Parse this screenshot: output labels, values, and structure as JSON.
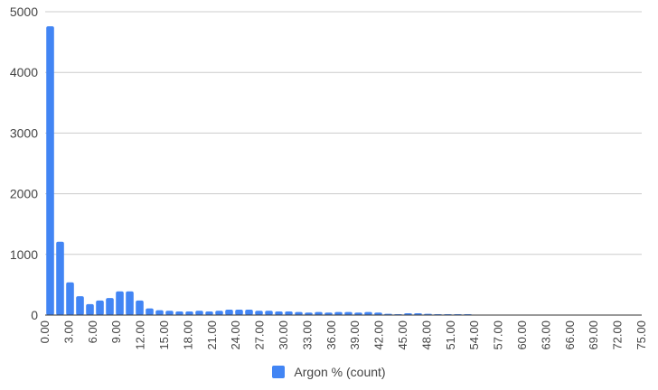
{
  "chart_data": {
    "type": "bar",
    "series": [
      {
        "name": "Argon % (count)",
        "color": "#4285F4",
        "values": [
          4760,
          1210,
          540,
          310,
          180,
          240,
          280,
          390,
          390,
          240,
          110,
          80,
          70,
          60,
          60,
          70,
          60,
          70,
          90,
          90,
          90,
          70,
          70,
          60,
          60,
          50,
          40,
          50,
          40,
          50,
          50,
          40,
          50,
          40,
          20,
          15,
          30,
          30,
          20,
          15,
          15,
          15,
          15,
          5,
          5,
          5,
          5,
          5,
          5,
          5,
          5,
          5,
          5,
          5,
          5,
          5,
          5,
          5
        ]
      }
    ],
    "x_start": 0,
    "bin_width": 1.25,
    "xlim": [
      0,
      75
    ],
    "ylim": [
      0,
      5000
    ],
    "y_ticks": [
      "0",
      "1000",
      "2000",
      "3000",
      "4000",
      "5000"
    ],
    "x_ticks": [
      "0.00",
      "3.00",
      "6.00",
      "9.00",
      "12.00",
      "15.00",
      "18.00",
      "21.00",
      "24.00",
      "27.00",
      "30.00",
      "33.00",
      "36.00",
      "39.00",
      "42.00",
      "45.00",
      "48.00",
      "51.00",
      "54.00",
      "57.00",
      "60.00",
      "63.00",
      "66.00",
      "69.00",
      "72.00",
      "75.00"
    ],
    "grid": true,
    "legend_position": "bottom",
    "gridline_color": "#cccccc",
    "baseline_color": "#333333"
  },
  "legend": {
    "label": "Argon % (count)"
  }
}
